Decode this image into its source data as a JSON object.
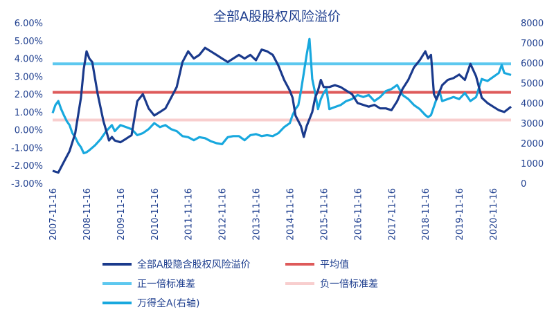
{
  "chart_data": {
    "type": "line",
    "title": "全部A股股权风险溢价",
    "x_start": "2007-11-16",
    "x_end": "2021-05-28",
    "x_ticks": [
      "2007-11-16",
      "2008-11-16",
      "2009-11-16",
      "2010-11-16",
      "2011-11-16",
      "2012-11-16",
      "2013-11-16",
      "2014-11-16",
      "2015-11-16",
      "2016-11-16",
      "2017-11-16",
      "2018-11-16",
      "2019-11-16",
      "2020-11-16"
    ],
    "y_left": {
      "min": -0.03,
      "max": 0.06,
      "ticks": [
        "-3.00%",
        "-2.00%",
        "-1.00%",
        "0.00%",
        "1.00%",
        "2.00%",
        "3.00%",
        "4.00%",
        "5.00%",
        "6.00%"
      ]
    },
    "y_right": {
      "min": 0,
      "max": 8000,
      "ticks": [
        "0",
        "1000",
        "2000",
        "3000",
        "4000",
        "5000",
        "6000",
        "7000",
        "8000"
      ]
    },
    "reference_lines": {
      "mean": 0.021,
      "plus_one_std": 0.037,
      "minus_one_std": 0.0055
    },
    "series": [
      {
        "name": "全部A股隐含股权风险溢价",
        "axis": "left",
        "color": "#1a3a8c",
        "points": [
          [
            "2007-11-16",
            -0.023
          ],
          [
            "2008-01-16",
            -0.024
          ],
          [
            "2008-03-16",
            -0.018
          ],
          [
            "2008-05-16",
            -0.012
          ],
          [
            "2008-07-16",
            -0.002
          ],
          [
            "2008-09-16",
            0.018
          ],
          [
            "2008-10-16",
            0.034
          ],
          [
            "2008-11-16",
            0.044
          ],
          [
            "2008-12-16",
            0.04
          ],
          [
            "2009-01-16",
            0.038
          ],
          [
            "2009-03-16",
            0.02
          ],
          [
            "2009-05-16",
            0.005
          ],
          [
            "2009-07-16",
            -0.006
          ],
          [
            "2009-08-16",
            -0.004
          ],
          [
            "2009-09-16",
            -0.006
          ],
          [
            "2009-11-16",
            -0.007
          ],
          [
            "2010-01-16",
            -0.005
          ],
          [
            "2010-03-16",
            -0.003
          ],
          [
            "2010-05-16",
            0.016
          ],
          [
            "2010-07-16",
            0.02
          ],
          [
            "2010-09-16",
            0.012
          ],
          [
            "2010-11-16",
            0.008
          ],
          [
            "2011-01-16",
            0.01
          ],
          [
            "2011-03-16",
            0.012
          ],
          [
            "2011-05-16",
            0.018
          ],
          [
            "2011-07-16",
            0.024
          ],
          [
            "2011-09-16",
            0.038
          ],
          [
            "2011-11-16",
            0.044
          ],
          [
            "2012-01-16",
            0.04
          ],
          [
            "2012-03-16",
            0.042
          ],
          [
            "2012-05-16",
            0.046
          ],
          [
            "2012-07-16",
            0.044
          ],
          [
            "2012-09-16",
            0.042
          ],
          [
            "2012-11-16",
            0.04
          ],
          [
            "2013-01-16",
            0.038
          ],
          [
            "2013-03-16",
            0.04
          ],
          [
            "2013-05-16",
            0.042
          ],
          [
            "2013-07-16",
            0.04
          ],
          [
            "2013-09-16",
            0.042
          ],
          [
            "2013-11-16",
            0.039
          ],
          [
            "2014-01-16",
            0.045
          ],
          [
            "2014-03-16",
            0.044
          ],
          [
            "2014-05-16",
            0.042
          ],
          [
            "2014-07-16",
            0.036
          ],
          [
            "2014-09-16",
            0.028
          ],
          [
            "2014-11-16",
            0.022
          ],
          [
            "2014-12-16",
            0.018
          ],
          [
            "2015-01-16",
            0.008
          ],
          [
            "2015-03-16",
            0.002
          ],
          [
            "2015-04-16",
            -0.004
          ],
          [
            "2015-05-16",
            0.002
          ],
          [
            "2015-07-16",
            0.01
          ],
          [
            "2015-08-16",
            0.018
          ],
          [
            "2015-09-16",
            0.022
          ],
          [
            "2015-10-16",
            0.028
          ],
          [
            "2015-11-16",
            0.024
          ],
          [
            "2016-01-16",
            0.024
          ],
          [
            "2016-03-16",
            0.025
          ],
          [
            "2016-05-16",
            0.024
          ],
          [
            "2016-07-16",
            0.022
          ],
          [
            "2016-09-16",
            0.02
          ],
          [
            "2016-11-16",
            0.015
          ],
          [
            "2017-01-16",
            0.014
          ],
          [
            "2017-03-16",
            0.013
          ],
          [
            "2017-05-16",
            0.014
          ],
          [
            "2017-07-16",
            0.012
          ],
          [
            "2017-09-16",
            0.012
          ],
          [
            "2017-11-16",
            0.011
          ],
          [
            "2018-01-16",
            0.016
          ],
          [
            "2018-03-16",
            0.023
          ],
          [
            "2018-05-16",
            0.028
          ],
          [
            "2018-07-16",
            0.035
          ],
          [
            "2018-09-16",
            0.039
          ],
          [
            "2018-11-16",
            0.044
          ],
          [
            "2018-12-16",
            0.04
          ],
          [
            "2019-01-16",
            0.042
          ],
          [
            "2019-02-16",
            0.02
          ],
          [
            "2019-03-16",
            0.017
          ],
          [
            "2019-05-16",
            0.025
          ],
          [
            "2019-07-16",
            0.028
          ],
          [
            "2019-09-16",
            0.029
          ],
          [
            "2019-11-16",
            0.031
          ],
          [
            "2020-01-16",
            0.028
          ],
          [
            "2020-03-16",
            0.037
          ],
          [
            "2020-05-16",
            0.03
          ],
          [
            "2020-07-16",
            0.018
          ],
          [
            "2020-09-16",
            0.015
          ],
          [
            "2020-11-16",
            0.013
          ],
          [
            "2021-01-16",
            0.011
          ],
          [
            "2021-03-16",
            0.01
          ],
          [
            "2021-05-28",
            0.013
          ]
        ]
      },
      {
        "name": "万得全A(右轴)",
        "axis": "right",
        "color": "#18a8de",
        "points": [
          [
            "2007-11-16",
            3500
          ],
          [
            "2007-12-16",
            3900
          ],
          [
            "2008-01-16",
            4100
          ],
          [
            "2008-02-16",
            3700
          ],
          [
            "2008-03-16",
            3400
          ],
          [
            "2008-04-16",
            3100
          ],
          [
            "2008-05-16",
            2900
          ],
          [
            "2008-06-16",
            2500
          ],
          [
            "2008-07-16",
            2300
          ],
          [
            "2008-08-16",
            2000
          ],
          [
            "2008-09-16",
            1800
          ],
          [
            "2008-10-16",
            1500
          ],
          [
            "2008-11-16",
            1550
          ],
          [
            "2008-12-16",
            1650
          ],
          [
            "2009-02-16",
            1900
          ],
          [
            "2009-04-16",
            2200
          ],
          [
            "2009-06-16",
            2600
          ],
          [
            "2009-08-16",
            2900
          ],
          [
            "2009-09-16",
            2600
          ],
          [
            "2009-11-16",
            2900
          ],
          [
            "2010-01-16",
            2800
          ],
          [
            "2010-03-16",
            2700
          ],
          [
            "2010-05-16",
            2400
          ],
          [
            "2010-07-16",
            2500
          ],
          [
            "2010-09-16",
            2700
          ],
          [
            "2010-11-16",
            3000
          ],
          [
            "2011-01-16",
            2800
          ],
          [
            "2011-03-16",
            2900
          ],
          [
            "2011-05-16",
            2700
          ],
          [
            "2011-07-16",
            2600
          ],
          [
            "2011-09-16",
            2350
          ],
          [
            "2011-11-16",
            2300
          ],
          [
            "2012-01-16",
            2150
          ],
          [
            "2012-03-16",
            2300
          ],
          [
            "2012-05-16",
            2250
          ],
          [
            "2012-07-16",
            2100
          ],
          [
            "2012-09-16",
            2000
          ],
          [
            "2012-11-16",
            1950
          ],
          [
            "2013-01-16",
            2300
          ],
          [
            "2013-03-16",
            2350
          ],
          [
            "2013-05-16",
            2350
          ],
          [
            "2013-07-16",
            2150
          ],
          [
            "2013-09-16",
            2400
          ],
          [
            "2013-11-16",
            2450
          ],
          [
            "2014-01-16",
            2350
          ],
          [
            "2014-03-16",
            2400
          ],
          [
            "2014-05-16",
            2350
          ],
          [
            "2014-07-16",
            2500
          ],
          [
            "2014-09-16",
            2800
          ],
          [
            "2014-11-16",
            3000
          ],
          [
            "2014-12-16",
            3400
          ],
          [
            "2015-01-16",
            3700
          ],
          [
            "2015-02-16",
            3900
          ],
          [
            "2015-03-16",
            4600
          ],
          [
            "2015-04-16",
            5500
          ],
          [
            "2015-05-16",
            6400
          ],
          [
            "2015-06-16",
            7200
          ],
          [
            "2015-07-16",
            5200
          ],
          [
            "2015-08-16",
            4500
          ],
          [
            "2015-09-16",
            3700
          ],
          [
            "2015-10-16",
            4200
          ],
          [
            "2015-11-16",
            4500
          ],
          [
            "2015-12-16",
            4700
          ],
          [
            "2016-01-16",
            3700
          ],
          [
            "2016-03-16",
            3800
          ],
          [
            "2016-05-16",
            3900
          ],
          [
            "2016-07-16",
            4100
          ],
          [
            "2016-09-16",
            4200
          ],
          [
            "2016-11-16",
            4400
          ],
          [
            "2017-01-16",
            4300
          ],
          [
            "2017-03-16",
            4400
          ],
          [
            "2017-05-16",
            4100
          ],
          [
            "2017-07-16",
            4300
          ],
          [
            "2017-09-16",
            4600
          ],
          [
            "2017-11-16",
            4700
          ],
          [
            "2018-01-16",
            4900
          ],
          [
            "2018-03-16",
            4400
          ],
          [
            "2018-05-16",
            4200
          ],
          [
            "2018-07-16",
            3900
          ],
          [
            "2018-09-16",
            3700
          ],
          [
            "2018-11-16",
            3400
          ],
          [
            "2018-12-16",
            3300
          ],
          [
            "2019-01-16",
            3400
          ],
          [
            "2019-03-16",
            4200
          ],
          [
            "2019-04-16",
            4600
          ],
          [
            "2019-05-16",
            4100
          ],
          [
            "2019-07-16",
            4200
          ],
          [
            "2019-09-16",
            4300
          ],
          [
            "2019-11-16",
            4200
          ],
          [
            "2020-01-16",
            4500
          ],
          [
            "2020-03-16",
            4100
          ],
          [
            "2020-05-16",
            4300
          ],
          [
            "2020-07-16",
            5200
          ],
          [
            "2020-09-16",
            5100
          ],
          [
            "2020-11-16",
            5300
          ],
          [
            "2021-01-16",
            5500
          ],
          [
            "2021-02-16",
            5900
          ],
          [
            "2021-03-16",
            5500
          ],
          [
            "2021-05-28",
            5400
          ]
        ]
      }
    ],
    "legend": [
      {
        "label": "全部A股隐含股权风险溢价",
        "color": "#1a3a8c",
        "width": 4
      },
      {
        "label": "平均值",
        "color": "#de5a5a",
        "width": 4
      },
      {
        "label": "正一倍标准差",
        "color": "#5dc8ef",
        "width": 4
      },
      {
        "label": "负一倍标准差",
        "color": "#f8cece",
        "width": 4
      },
      {
        "label": "万得全A(右轴)",
        "color": "#18a8de",
        "width": 4
      }
    ],
    "colors": {
      "mean": "#de5a5a",
      "plus_one_std": "#5dc8ef",
      "minus_one_std": "#f8cece",
      "axis_text": "#1f3f8f"
    }
  }
}
